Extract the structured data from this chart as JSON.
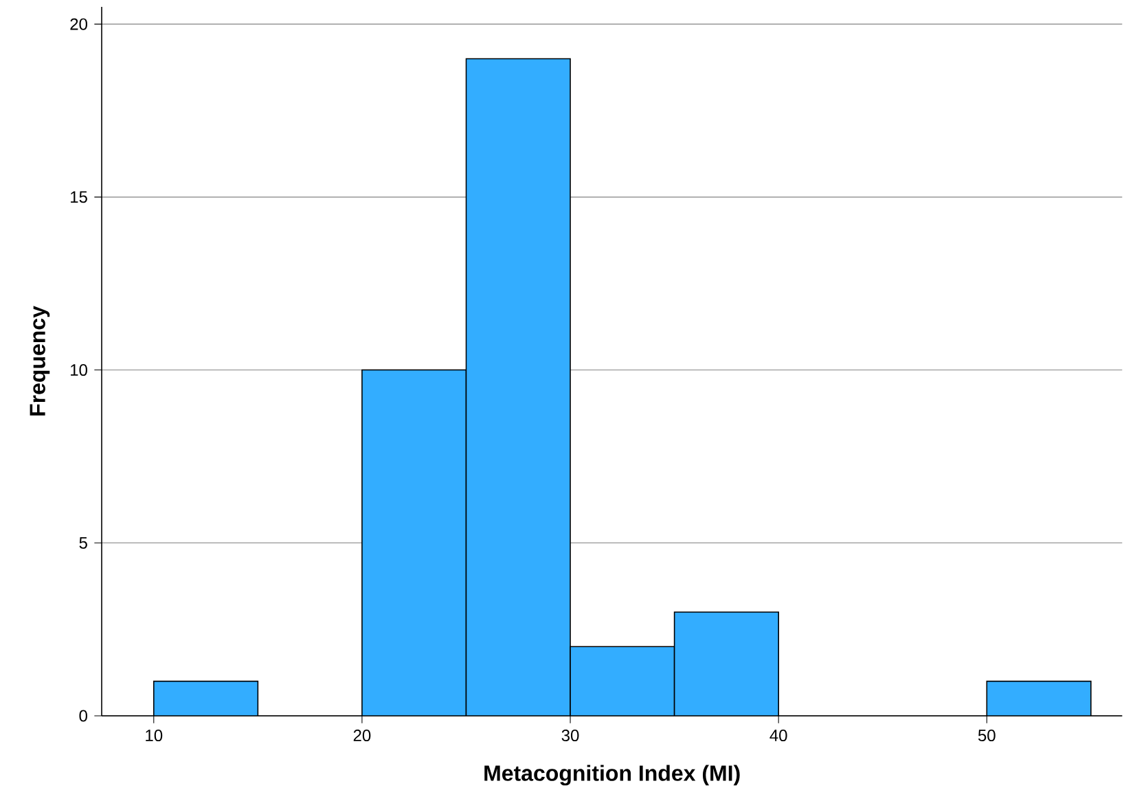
{
  "chart_data": {
    "type": "histogram",
    "xlabel": "Metacognition Index (MI)",
    "ylabel": "Frequency",
    "bins": [
      10,
      15,
      20,
      25,
      30,
      35,
      40,
      45,
      50,
      55
    ],
    "values": [
      1,
      0,
      10,
      19,
      2,
      3,
      0,
      0,
      1
    ],
    "color": "#33adff",
    "xlim": [
      7.5,
      56.5
    ],
    "xticks": [
      10,
      20,
      30,
      40,
      50
    ],
    "ylim": [
      0,
      20.5
    ],
    "yticks": [
      0,
      5,
      10,
      15,
      20
    ],
    "grid": "y"
  }
}
